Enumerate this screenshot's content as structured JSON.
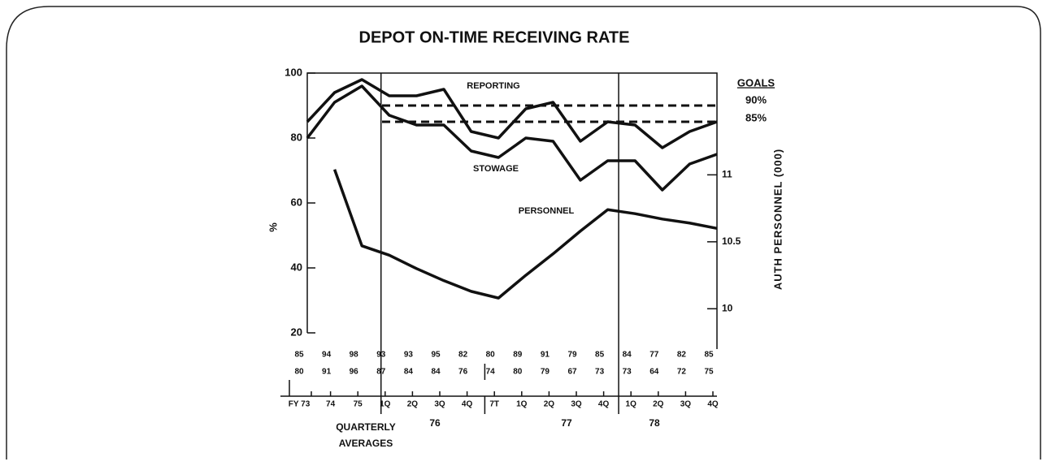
{
  "chart_data": {
    "type": "line",
    "title": "DEPOT ON-TIME RECEIVING RATE",
    "y_label": "%",
    "y2_label": "AUTH PERSONNEL (000)",
    "categories": [
      "FY 73",
      "74",
      "75",
      "1Q",
      "2Q",
      "3Q",
      "4Q",
      "7T",
      "1Q",
      "2Q",
      "3Q",
      "4Q",
      "1Q",
      "2Q",
      "3Q",
      "4Q"
    ],
    "groups": [
      [
        "QUARTERLY",
        "AVERAGES"
      ],
      "76",
      "77",
      "78"
    ],
    "ylim": [
      20,
      100
    ],
    "yticks": [
      20,
      40,
      60,
      80,
      100
    ],
    "y2lim": [
      9.82,
      11.76
    ],
    "y2ticks": [
      10,
      10.5,
      11
    ],
    "series": [
      {
        "name": "REPORTING",
        "color": "#111111",
        "values": [
          85,
          94,
          98,
          93,
          93,
          95,
          82,
          80,
          89,
          91,
          79,
          85,
          84,
          77,
          82,
          85
        ]
      },
      {
        "name": "STOWAGE",
        "color": "#111111",
        "values": [
          80,
          91,
          96,
          87,
          84,
          84,
          76,
          74,
          80,
          79,
          67,
          73,
          73,
          64,
          72,
          75
        ]
      },
      {
        "name": "PERSONNEL",
        "color": "#111111",
        "axis": "y2",
        "values": [
          null,
          11.04,
          10.47,
          10.4,
          10.3,
          10.21,
          10.13,
          10.08,
          10.25,
          10.41,
          10.58,
          10.74,
          10.71,
          10.67,
          10.64,
          10.6
        ]
      }
    ],
    "goals_title": "GOALS",
    "goals": [
      {
        "label": "90%",
        "value": 90
      },
      {
        "label": "85%",
        "value": 85
      }
    ]
  }
}
